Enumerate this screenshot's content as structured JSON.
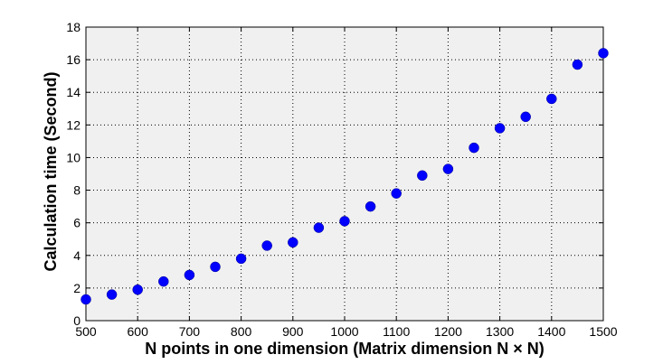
{
  "chart_data": {
    "type": "scatter",
    "xlabel": "N points in one dimension (Matrix dimension N × N)",
    "ylabel": "Calculation time (Second)",
    "xlim": [
      500,
      1500
    ],
    "ylim": [
      0,
      18
    ],
    "x_ticks": [
      "500",
      "600",
      "700",
      "800",
      "900",
      "1000",
      "1100",
      "1200",
      "1300",
      "1400",
      "1500"
    ],
    "y_ticks": [
      "0",
      "2",
      "4",
      "6",
      "8",
      "10",
      "12",
      "14",
      "16",
      "18"
    ],
    "grid": true,
    "plot_background": "#f0f0f0",
    "marker_color": "#0000ff",
    "series": [
      {
        "x": [
          500,
          550,
          600,
          650,
          700,
          750,
          800,
          850,
          900,
          950,
          1000,
          1050,
          1100,
          1150,
          1200,
          1250,
          1300,
          1350,
          1400,
          1450,
          1500
        ],
        "y": [
          1.3,
          1.6,
          1.9,
          2.4,
          2.8,
          3.3,
          3.8,
          4.6,
          4.8,
          5.7,
          6.1,
          7.0,
          7.8,
          8.9,
          9.3,
          10.6,
          11.8,
          12.5,
          13.6,
          15.7,
          16.4
        ]
      }
    ]
  }
}
